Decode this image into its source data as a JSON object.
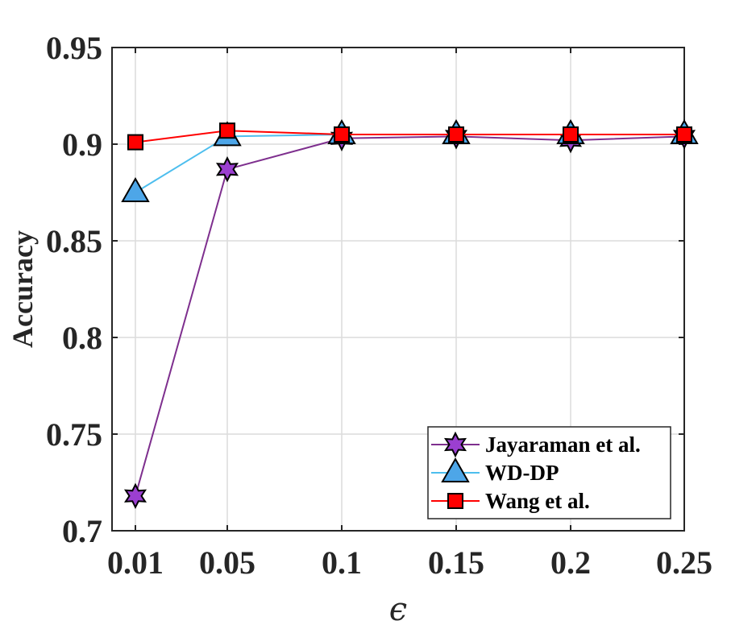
{
  "chart_data": {
    "type": "line",
    "xlabel": "ϵ",
    "ylabel": "Accuracy",
    "categories": [
      "0.01",
      "0.05",
      "0.1",
      "0.15",
      "0.2",
      "0.25"
    ],
    "ylim": [
      0.7,
      0.95
    ],
    "yticks": [
      "0.7",
      "0.75",
      "0.8",
      "0.85",
      "0.9",
      "0.95"
    ],
    "grid": true,
    "legend_position": "bottom-right",
    "series": [
      {
        "name": "Jayaraman et al.",
        "marker": "hexagram",
        "color": "#7E2F8E",
        "marker_fill": "#9B3FD0",
        "values": [
          0.718,
          0.887,
          0.903,
          0.904,
          0.902,
          0.904
        ]
      },
      {
        "name": "WD-DP",
        "marker": "triangle",
        "color": "#4DBEEE",
        "marker_fill": "#4DA6E8",
        "values": [
          0.875,
          0.904,
          0.905,
          0.905,
          0.905,
          0.905
        ]
      },
      {
        "name": "Wang et al.",
        "marker": "square",
        "color": "#FF0000",
        "marker_fill": "#FF0000",
        "values": [
          0.901,
          0.907,
          0.905,
          0.905,
          0.905,
          0.905
        ]
      }
    ]
  }
}
